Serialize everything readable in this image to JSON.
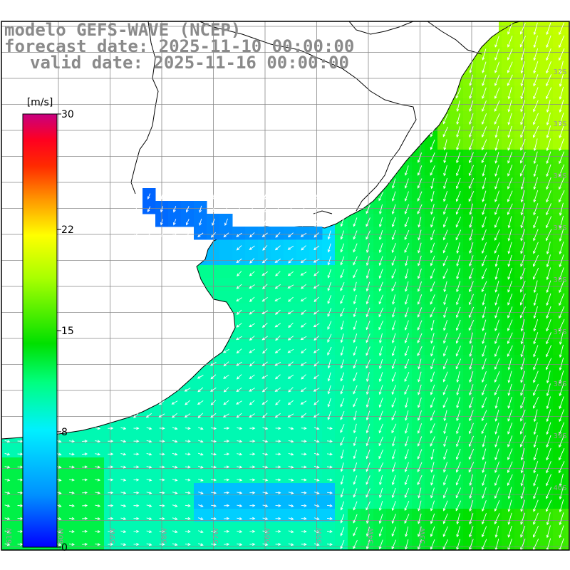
{
  "title": {
    "line1": "modelo GEFS-WAVE (NCEP)",
    "line2": "forecast date: 2025-11-10 00:00:00",
    "line3": "valid date: 2025-11-16 00:00:00"
  },
  "colorbar": {
    "unit": "[m/s]",
    "min": 0,
    "max": 30,
    "ticks": [
      {
        "label": "30",
        "value": 30
      },
      {
        "label": "22",
        "value": 22
      },
      {
        "label": "15",
        "value": 15
      },
      {
        "label": "8",
        "value": 8
      },
      {
        "label": "0",
        "value": 0
      }
    ],
    "colors": [
      "#0000ff",
      "#0096ff",
      "#00e6ff",
      "#00ff80",
      "#00e600",
      "#80ff00",
      "#ffff00",
      "#ffa000",
      "#ff4000",
      "#ff0000",
      "#e00060",
      "#c00080"
    ]
  },
  "map": {
    "variable": "wind speed",
    "units": "m/s",
    "lat_labels": [
      "32S",
      "33S",
      "34S",
      "35S",
      "36S",
      "37S",
      "38S",
      "39S",
      "40S"
    ],
    "lon_labels": [
      "61W",
      "60W",
      "59W",
      "58W",
      "57W",
      "56W",
      "55W",
      "54W",
      "53W"
    ],
    "colors": {
      "land": "#ffffff",
      "coast": "#000000",
      "grid": "#888888",
      "arrows": "#ffffff",
      "label": "#9a9a9a"
    }
  }
}
